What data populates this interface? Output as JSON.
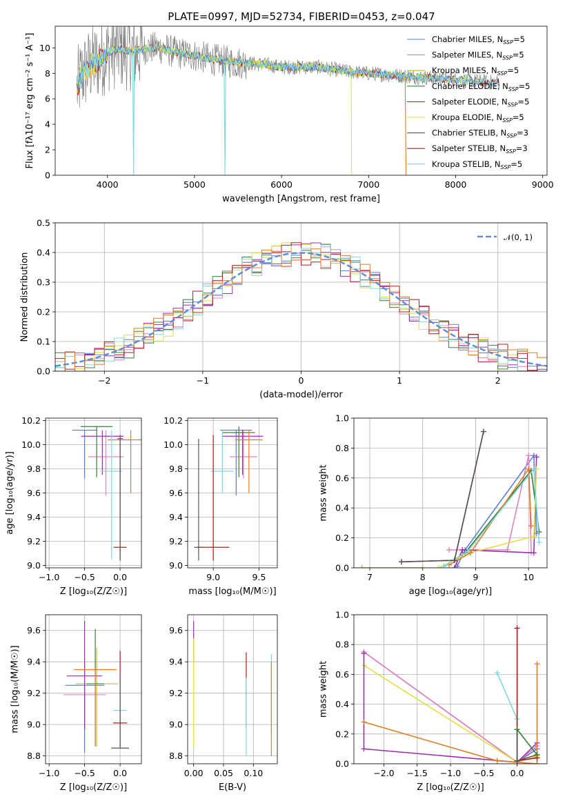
{
  "title": "PLATE=0997, MJD=52734, FIBERID=0453, z=0.047",
  "colors": {
    "chabrier_miles": "#5b7fd6",
    "salpeter_miles": "#e57fbf",
    "kroupa_miles": "#c9b83a",
    "chabrier_elodie": "#3a7d3a",
    "salpeter_elodie": "#9b2fae",
    "kroupa_elodie": "#e0e040",
    "chabrier_stelib": "#555555",
    "salpeter_stelib": "#b0171c",
    "kroupa_stelib": "#7fd8e0",
    "data": "#808080",
    "orange": "#e07b24",
    "lime": "#c9ee5a",
    "normal": "#5b8fd6"
  },
  "chart_data": [
    {
      "id": "spectrum",
      "type": "line",
      "xlabel": "wavelength [Angstrom, rest frame]",
      "ylabel": "Flux [fλ10⁻¹⁷ erg cm⁻² s⁻¹ A⁻¹]",
      "xlim": [
        3400,
        9050
      ],
      "ylim": [
        0,
        11.7
      ],
      "xticks": [
        "4000",
        "5000",
        "6000",
        "7000",
        "8000",
        "9000"
      ],
      "yticks": [
        "0",
        "2",
        "4",
        "6",
        "8",
        "10"
      ],
      "legend": [
        "Chabrier MILES, N_SSP=5",
        "Salpeter MILES, N_SSP=5",
        "Kroupa MILES, N_SSP=5",
        "Chabrier ELODIE, N_SSP=5",
        "Salpeter ELODIE, N_SSP=5",
        "Kroupa ELODIE, N_SSP=5",
        "Chabrier STELIB, N_SSP=3",
        "Salpeter STELIB, N_SSP=3",
        "Kroupa STELIB, N_SSP=5"
      ],
      "legend_placement": "upper-right",
      "model_continuum": {
        "x": [
          3650,
          3700,
          3800,
          3900,
          4000,
          4100,
          4200,
          4300,
          4400,
          4500,
          4600,
          4800,
          5000,
          5200,
          5400,
          5600,
          5800,
          6000,
          6200,
          6400,
          6600,
          6800,
          7000,
          7200,
          7400,
          7600,
          7800,
          8000,
          8200,
          8400,
          8600,
          8800
        ],
        "y": [
          6.8,
          7.8,
          8.6,
          9.0,
          9.6,
          9.9,
          9.8,
          9.7,
          9.9,
          10.0,
          10.0,
          9.6,
          9.4,
          9.1,
          8.9,
          8.8,
          8.7,
          8.5,
          8.5,
          8.5,
          8.3,
          8.1,
          8.0,
          7.9,
          7.8,
          7.7,
          7.6,
          7.5,
          7.4,
          7.3,
          7.3,
          7.2
        ]
      }
    },
    {
      "id": "residuals",
      "type": "line",
      "xlabel": "(data-model)/error",
      "ylabel": "Normed distribution",
      "xlim": [
        -2.5,
        2.5
      ],
      "ylim": [
        0,
        0.5
      ],
      "xticks": [
        "−2",
        "−1",
        "0",
        "1",
        "2"
      ],
      "yticks": [
        "0.0",
        "0.1",
        "0.2",
        "0.3",
        "0.4",
        "0.5"
      ],
      "legend": [
        "𝒩(0, 1)"
      ],
      "legend_placement": "upper-right",
      "series": [
        {
          "name": "𝒩(0, 1)",
          "mean": 0,
          "sigma": 1
        }
      ]
    },
    {
      "id": "z_age",
      "type": "scatter",
      "xlabel": "Z [log₁₀(Z/Z☉)]",
      "ylabel": "age  [log₁₀(age/yr)]",
      "xlim": [
        -1.05,
        0.3
      ],
      "ylim": [
        8.98,
        10.22
      ],
      "xticks": [
        "−1.0",
        "−0.5",
        "0.0"
      ],
      "yticks": [
        "9.0",
        "9.2",
        "9.4",
        "9.6",
        "9.8",
        "10.0",
        "10.2"
      ],
      "series": [
        {
          "color": "chabrier_miles",
          "x": -0.5,
          "y": 10.12,
          "dx": 0.35,
          "dy": [
            9.72,
            10.12
          ]
        },
        {
          "color": "salpeter_miles",
          "x": -0.2,
          "y": 9.9,
          "dx": 0.5,
          "dy": [
            9.58,
            10.12
          ]
        },
        {
          "color": "chabrier_elodie",
          "x": -0.33,
          "y": 10.15,
          "dx": 0.45,
          "dy": [
            9.73,
            10.15
          ]
        },
        {
          "color": "salpeter_elodie",
          "x": -0.25,
          "y": 10.07,
          "dx": 0.6,
          "dy": [
            9.75,
            10.12
          ]
        },
        {
          "color": "orange",
          "x": 0.15,
          "y": 10.04,
          "dx": 0.65,
          "dy": [
            9.6,
            10.12
          ]
        },
        {
          "color": "kroupa_stelib",
          "x": -0.12,
          "y": 9.78,
          "dx": 0.3,
          "dy": [
            9.05,
            10.12
          ]
        },
        {
          "color": "salpeter_stelib",
          "x": 0.0,
          "y": 9.15,
          "dx": 0.18,
          "dy": [
            9.04,
            10.08
          ]
        },
        {
          "color": "chabrier_stelib",
          "x": 0.0,
          "y": 10.05,
          "dx": 0.08,
          "dy": [
            9.04,
            10.08
          ]
        }
      ]
    },
    {
      "id": "mass_age",
      "type": "scatter",
      "xlabel": "mass [log₁₀(M/M☉)]",
      "ylabel": "",
      "xlim": [
        8.72,
        9.7
      ],
      "ylim": [
        8.98,
        10.22
      ],
      "xticks": [
        "9.0",
        "9.5"
      ],
      "yticks": [
        "9.0",
        "9.2",
        "9.4",
        "9.6",
        "9.8",
        "10.0",
        "10.2"
      ],
      "series": [
        {
          "color": "chabrier_miles",
          "x": 9.25,
          "y": 10.12,
          "dx": 0.35,
          "dy": [
            9.58,
            10.12
          ]
        },
        {
          "color": "salpeter_miles",
          "x": 9.33,
          "y": 9.9,
          "dx": 0.3,
          "dy": [
            9.72,
            10.12
          ]
        },
        {
          "color": "chabrier_elodie",
          "x": 9.28,
          "y": 10.1,
          "dx": 0.35,
          "dy": [
            9.73,
            10.15
          ]
        },
        {
          "color": "salpeter_elodie",
          "x": 9.32,
          "y": 10.07,
          "dx": 0.45,
          "dy": [
            9.75,
            10.12
          ]
        },
        {
          "color": "orange",
          "x": 9.39,
          "y": 10.04,
          "dx": 0.3,
          "dy": [
            9.6,
            10.12
          ]
        },
        {
          "color": "kroupa_stelib",
          "x": 9.1,
          "y": 9.78,
          "dx": 0.25,
          "dy": [
            9.6,
            10.12
          ]
        },
        {
          "color": "salpeter_stelib",
          "x": 9.0,
          "y": 9.15,
          "dx": 0.35,
          "dy": [
            9.04,
            10.08
          ]
        },
        {
          "color": "chabrier_stelib",
          "x": 8.84,
          "y": 9.15,
          "dx": 0.1,
          "dy": [
            9.04,
            10.05
          ]
        }
      ]
    },
    {
      "id": "age_weight",
      "type": "line",
      "xlabel": "age  [log₁₀(age/yr)]",
      "ylabel": "mass weight",
      "xlim": [
        6.7,
        10.35
      ],
      "ylim": [
        0,
        1.0
      ],
      "xticks": [
        "7",
        "8",
        "9",
        "10"
      ],
      "yticks": [
        "0.0",
        "0.2",
        "0.4",
        "0.6",
        "0.8",
        "1.0"
      ],
      "series": [
        {
          "color": "chabrier_miles",
          "x": [
            8.65,
            8.8,
            10.1,
            10.15
          ],
          "y": [
            0.01,
            0.12,
            0.75,
            0.23
          ]
        },
        {
          "color": "salpeter_miles",
          "x": [
            8.5,
            9.6,
            10.0,
            10.05
          ],
          "y": [
            0.12,
            0.12,
            0.75,
            0.1
          ]
        },
        {
          "color": "chabrier_elodie",
          "x": [
            8.4,
            8.8,
            10.05,
            10.2
          ],
          "y": [
            0.01,
            0.1,
            0.65,
            0.24
          ]
        },
        {
          "color": "salpeter_elodie",
          "x": [
            8.6,
            8.75,
            10.1,
            10.15
          ],
          "y": [
            0.0,
            0.12,
            0.1,
            0.74
          ]
        },
        {
          "color": "kroupa_elodie",
          "x": [
            8.3,
            8.9,
            10.1,
            10.15
          ],
          "y": [
            0.0,
            0.1,
            0.21,
            0.66
          ]
        },
        {
          "color": "orange",
          "x": [
            8.5,
            8.9,
            10.0,
            10.05
          ],
          "y": [
            0.02,
            0.1,
            0.66,
            0.28
          ]
        },
        {
          "color": "kroupa_stelib",
          "x": [
            8.4,
            8.85,
            10.1,
            10.2
          ],
          "y": [
            0.01,
            0.11,
            0.66,
            0.17
          ]
        },
        {
          "color": "salpeter_stelib",
          "x": [
            7.6,
            8.6,
            9.15
          ],
          "y": [
            0.04,
            0.05,
            0.91
          ]
        },
        {
          "color": "chabrier_stelib",
          "x": [
            7.6,
            8.6,
            9.15
          ],
          "y": [
            0.04,
            0.05,
            0.91
          ]
        },
        {
          "color": "kroupa_miles",
          "x": [
            6.85,
            8.0
          ],
          "y": [
            0.0,
            0.0
          ]
        }
      ]
    },
    {
      "id": "z_mass",
      "type": "scatter",
      "xlabel": "Z [log₁₀(Z/Z☉)]",
      "ylabel": "mass [log₁₀(M/M☉)]",
      "xlim": [
        -1.05,
        0.3
      ],
      "ylim": [
        8.75,
        9.7
      ],
      "xticks": [
        "−1.0",
        "−0.5",
        "0.0"
      ],
      "yticks": [
        "8.8",
        "9.0",
        "9.2",
        "9.4",
        "9.6"
      ],
      "series": [
        {
          "color": "chabrier_miles",
          "x": -0.5,
          "y": 9.25,
          "dx": 0.55,
          "dy": [
            8.82,
            9.4
          ]
        },
        {
          "color": "salpeter_miles",
          "x": -0.5,
          "y": 9.19,
          "dx": 0.6,
          "dy": [
            8.97,
            9.32
          ]
        },
        {
          "color": "kroupa_miles",
          "x": -0.33,
          "y": 9.26,
          "dx": 0.6,
          "dy": [
            8.86,
            9.49
          ]
        },
        {
          "color": "salpeter_elodie",
          "x": -0.5,
          "y": 9.31,
          "dx": 0.5,
          "dy": [
            8.97,
            9.66
          ]
        },
        {
          "color": "chabrier_elodie",
          "x": -0.35,
          "y": 9.26,
          "dx": 0.25,
          "dy": [
            8.87,
            9.61
          ]
        },
        {
          "color": "orange",
          "x": -0.35,
          "y": 9.35,
          "dx": 0.6,
          "dy": [
            8.86,
            9.35
          ]
        },
        {
          "color": "kroupa_stelib",
          "x": 0.0,
          "y": 9.09,
          "dx": 0.2,
          "dy": [
            8.86,
            9.3
          ]
        },
        {
          "color": "salpeter_stelib",
          "x": 0.0,
          "y": 9.01,
          "dx": 0.2,
          "dy": [
            8.86,
            9.47
          ]
        },
        {
          "color": "chabrier_stelib",
          "x": 0.0,
          "y": 8.85,
          "dx": 0.25,
          "dy": [
            8.85,
            9.3
          ]
        }
      ]
    },
    {
      "id": "ebv_mass",
      "type": "scatter",
      "xlabel": "E(B-V)",
      "ylabel": "",
      "xlim": [
        -0.01,
        0.14
      ],
      "ylim": [
        8.75,
        9.7
      ],
      "xticks": [
        "0.00",
        "0.05",
        "0.10"
      ],
      "yticks": [
        "8.8",
        "9.0",
        "9.2",
        "9.4",
        "9.6"
      ],
      "series": [
        {
          "color": "salpeter_elodie",
          "x": 0.0,
          "y": 9.4,
          "dx": 0,
          "dy": [
            9.4,
            9.66
          ]
        },
        {
          "color": "kroupa_elodie",
          "x": 0.0,
          "y": 9.2,
          "dx": 0,
          "dy": [
            8.85,
            9.55
          ]
        },
        {
          "color": "salpeter_stelib",
          "x": 0.088,
          "y": 9.2,
          "dx": 0,
          "dy": [
            8.98,
            9.46
          ]
        },
        {
          "color": "kroupa_stelib",
          "x": 0.088,
          "y": 9.0,
          "dx": 0,
          "dy": [
            8.8,
            9.3
          ]
        },
        {
          "color": "kroupa_stelib",
          "x": 0.13,
          "y": 9.2,
          "dx": 0,
          "dy": [
            8.95,
            9.45
          ]
        },
        {
          "color": "orange",
          "x": 0.13,
          "y": 9.1,
          "dx": 0,
          "dy": [
            8.8,
            9.4
          ]
        }
      ]
    },
    {
      "id": "z_weight",
      "type": "line",
      "xlabel": "Z [log₁₀(Z/Z☉)]",
      "ylabel": "mass weight",
      "xlim": [
        -2.45,
        0.45
      ],
      "ylim": [
        0,
        1.0
      ],
      "xticks": [
        "−2.0",
        "−1.5",
        "−1.0",
        "−0.5",
        "0.0"
      ],
      "yticks": [
        "0.0",
        "0.2",
        "0.4",
        "0.6",
        "0.8",
        "1.0"
      ],
      "series": [
        {
          "color": "chabrier_miles",
          "x": [
            -2.3,
            0.0,
            0.3
          ],
          "y": [
            0.75,
            0.01,
            0.1
          ]
        },
        {
          "color": "salpeter_miles",
          "x": [
            -2.3,
            0.0,
            0.3
          ],
          "y": [
            0.75,
            0.01,
            0.12
          ]
        },
        {
          "color": "kroupa_elodie",
          "x": [
            -2.3,
            0.0,
            0.3
          ],
          "y": [
            0.66,
            0.01,
            0.05
          ]
        },
        {
          "color": "salpeter_elodie",
          "x": [
            -2.3,
            -2.3,
            0.0,
            0.3
          ],
          "y": [
            0.74,
            0.1,
            0.01,
            0.14
          ]
        },
        {
          "color": "orange",
          "x": [
            -2.3,
            -0.3,
            0.3,
            0.3
          ],
          "y": [
            0.28,
            0.02,
            0.0,
            0.67
          ]
        },
        {
          "color": "kroupa_stelib",
          "x": [
            -0.3,
            0.0,
            0.0
          ],
          "y": [
            0.61,
            0.3,
            0.0
          ]
        },
        {
          "color": "salpeter_stelib",
          "x": [
            0.0,
            0.0,
            0.3
          ],
          "y": [
            0.91,
            0.02,
            0.04
          ]
        },
        {
          "color": "chabrier_stelib",
          "x": [
            0.0,
            0.0,
            0.3
          ],
          "y": [
            0.23,
            0.02,
            0.06
          ]
        },
        {
          "color": "chabrier_elodie",
          "x": [
            0.0,
            0.3
          ],
          "y": [
            0.23,
            0.06
          ]
        }
      ]
    }
  ]
}
